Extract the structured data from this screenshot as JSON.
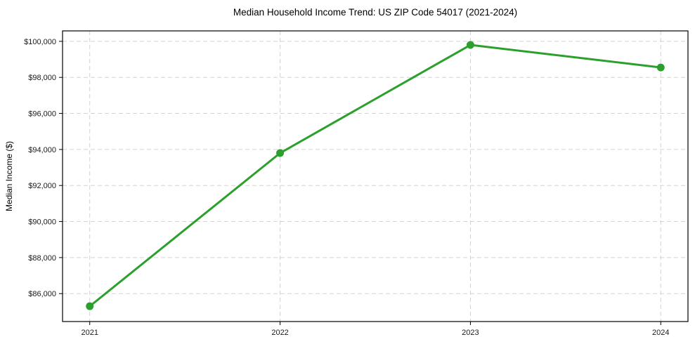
{
  "chart_data": {
    "type": "line",
    "title": "Median Household Income Trend: US ZIP Code 54017 (2021-2024)",
    "xlabel": "",
    "ylabel": "Median Income ($)",
    "categories": [
      "2021",
      "2022",
      "2023",
      "2024"
    ],
    "series": [
      {
        "name": "Median Household Income",
        "values": [
          85300,
          93800,
          99800,
          98550
        ]
      }
    ],
    "ylim": [
      84450,
      100580
    ],
    "yticks": [
      86000,
      88000,
      90000,
      92000,
      94000,
      96000,
      98000,
      100000
    ],
    "ytick_prefix": "$",
    "grid": true,
    "grid_style": "dashed",
    "legend_position": "none",
    "marker": "circle",
    "colors": {
      "line": "#2ca02c",
      "marker": "#2ca02c",
      "grid": "#d3d3d3",
      "axis": "#000000",
      "text": "#1a1a1a",
      "title": "#000000",
      "background": "#ffffff"
    }
  }
}
